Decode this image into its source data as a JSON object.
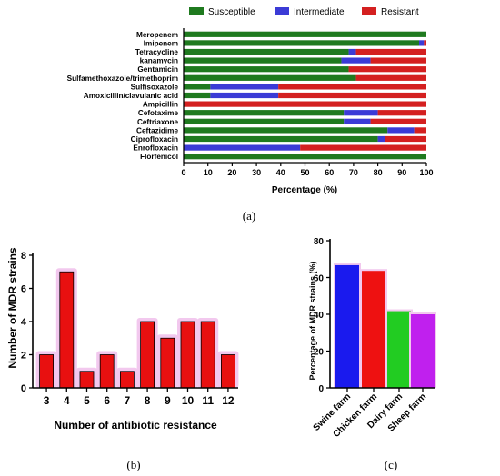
{
  "colors": {
    "susceptible": "#1f7a1f",
    "intermediate": "#3b3bd6",
    "resistant": "#d42020",
    "bar_red": "#e81010",
    "bar_glow": "#f2c8ee"
  },
  "captions": {
    "a": "(a)",
    "b": "(b)",
    "c": "(c)"
  },
  "chart_data": [
    {
      "type": "bar",
      "orientation": "horizontal",
      "stacked": true,
      "categories": [
        "Meropenem",
        "Imipenem",
        "Tetracycline",
        "kanamycin",
        "Gentamicin",
        "Sulfamethoxazole/trimethoprim",
        "Sulfisoxazole",
        "Amoxicillin/clavulanic acid",
        "Ampicillin",
        "Cefotaxime",
        "Ceftriaxone",
        "Ceftazidime",
        "Ciprofloxacin",
        "Enrofloxacin",
        "Florfenicol"
      ],
      "series": [
        {
          "name": "Susceptible",
          "values": [
            100,
            97,
            68,
            65,
            68,
            71,
            11,
            11,
            0,
            66,
            66,
            84,
            80,
            0,
            100
          ]
        },
        {
          "name": "Intermediate",
          "values": [
            0,
            2,
            3,
            12,
            0,
            0,
            28,
            28,
            0,
            14,
            11,
            11,
            3,
            48,
            0
          ]
        },
        {
          "name": "Resistant",
          "values": [
            0,
            1,
            29,
            23,
            32,
            29,
            61,
            61,
            100,
            20,
            23,
            5,
            17,
            52,
            0
          ]
        }
      ],
      "xlabel": "Percentage (%)",
      "xlim": [
        0,
        100
      ],
      "xticks": [
        "0",
        "10",
        "20",
        "30",
        "40",
        "50",
        "60",
        "70",
        "80",
        "90",
        "100"
      ],
      "legend": "top"
    },
    {
      "type": "bar",
      "categories": [
        "3",
        "4",
        "5",
        "6",
        "7",
        "8",
        "9",
        "10",
        "11",
        "12"
      ],
      "values": [
        2,
        7,
        1,
        2,
        1,
        4,
        3,
        4,
        4,
        2
      ],
      "xlabel": "Number of antibiotic resistance",
      "ylabel": "Number of MDR strains",
      "ylim": [
        0,
        8
      ],
      "yticks": [
        "0",
        "2",
        "4",
        "6",
        "8"
      ]
    },
    {
      "type": "bar",
      "categories": [
        "Swine farm",
        "Chicken farm",
        "Dairy farm",
        "Sheep farm"
      ],
      "values": [
        66.7,
        63.6,
        41.7,
        40.0
      ],
      "colors": [
        "#1a1aee",
        "#ee1111",
        "#22cc22",
        "#c020ee"
      ],
      "ylabel": "Percentage of MDR strains (%)",
      "ylim": [
        0,
        80
      ],
      "yticks": [
        "0",
        "20",
        "40",
        "60",
        "80"
      ]
    }
  ]
}
